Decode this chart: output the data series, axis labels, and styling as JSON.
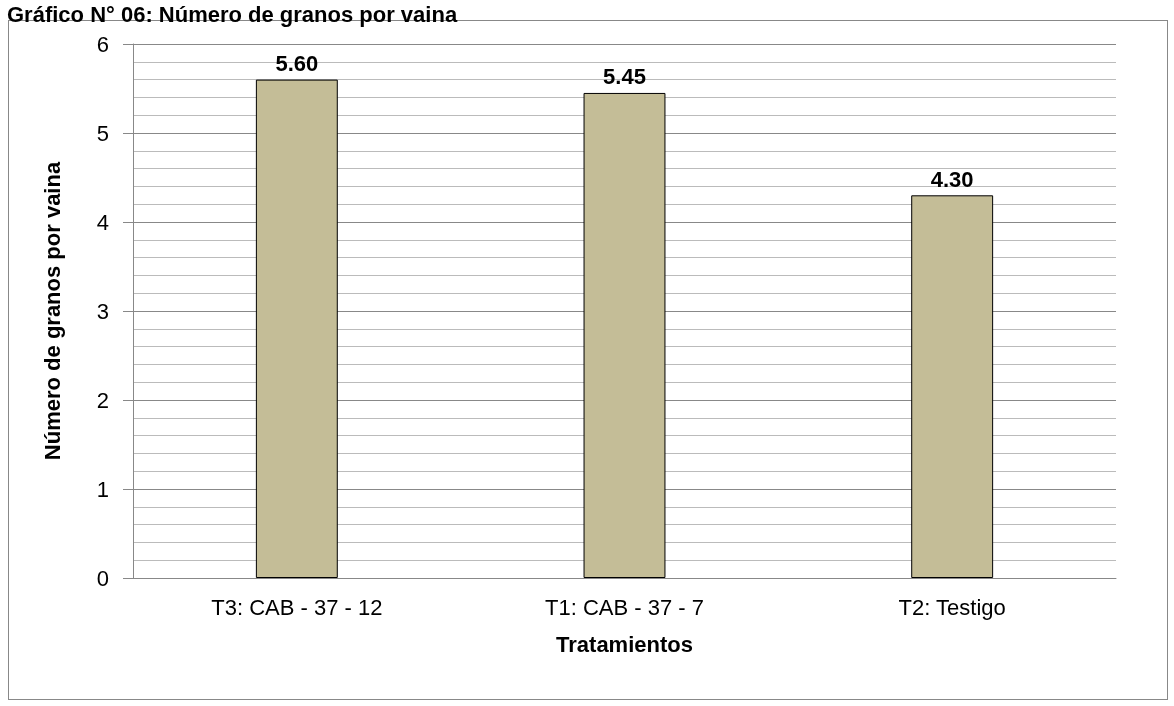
{
  "chart_data": {
    "type": "bar",
    "title": "Gráfico N° 06: Número de granos por vaina",
    "xlabel": "Tratamientos",
    "ylabel": "Número de granos por vaina",
    "categories": [
      "T3: CAB - 37 - 12",
      "T1: CAB - 37 - 7",
      "T2: Testigo"
    ],
    "values": [
      5.6,
      5.45,
      4.3
    ],
    "value_labels": [
      "5.60",
      "5.45",
      "4.30"
    ],
    "color": "#c4bd97",
    "ylim": [
      0,
      6
    ],
    "yticks": [
      0,
      1,
      2,
      3,
      4,
      5,
      6
    ],
    "grid": "y"
  }
}
